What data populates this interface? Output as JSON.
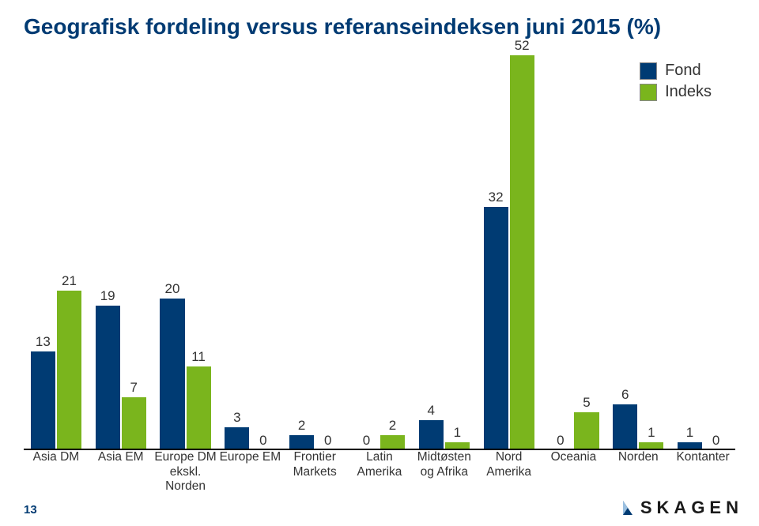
{
  "title": "Geografisk fordeling versus referanseindeksen juni 2015 (%)",
  "legend": {
    "fond": {
      "label": "Fond",
      "color": "#003b73"
    },
    "indeks": {
      "label": "Indeks",
      "color": "#7ab51d"
    }
  },
  "chart": {
    "type": "bar",
    "background_color": "#ffffff",
    "baseline_color": "#000000",
    "ylim": [
      0,
      52
    ],
    "value_fontsize": 17,
    "xlabel_fontsize": 15.5,
    "categories": [
      "Asia DM",
      "Asia EM",
      "Europe DM ekskl. Norden",
      "Europe EM",
      "Frontier Markets",
      "Latin Amerika",
      "Midtøsten og Afrika",
      "Nord Amerika",
      "Oceania",
      "Norden",
      "Kontanter"
    ],
    "series": [
      {
        "name": "Fond",
        "color": "#003b73",
        "values": [
          13,
          19,
          20,
          3,
          2,
          0,
          4,
          32,
          0,
          6,
          1
        ]
      },
      {
        "name": "Indeks",
        "color": "#7ab51d",
        "values": [
          21,
          7,
          11,
          0,
          0,
          2,
          1,
          52,
          5,
          1,
          0
        ]
      }
    ],
    "bar_width": 0.38
  },
  "footer": {
    "page_number": "13",
    "logo_text": "SKAGEN"
  }
}
